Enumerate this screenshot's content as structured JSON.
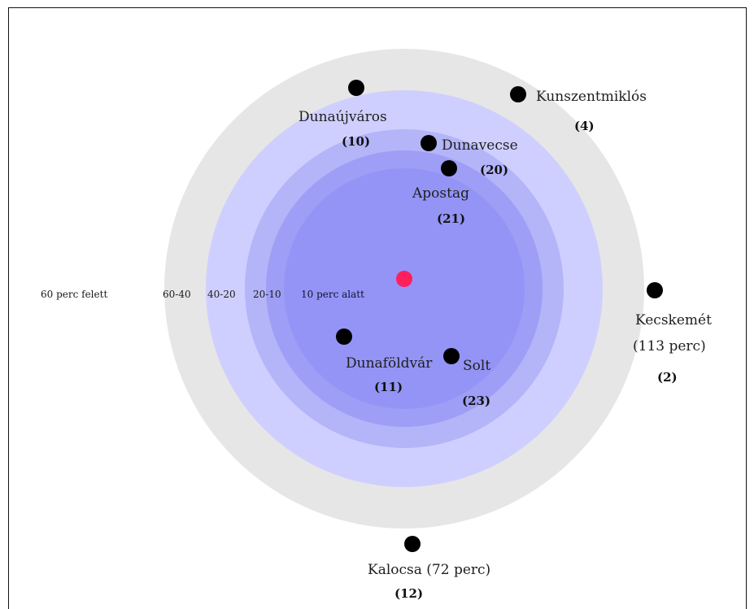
{
  "zones": {
    "z1": {
      "label": "60 perc felett",
      "color": "#e6e6e6"
    },
    "z2": {
      "label": "60-40",
      "color": "#cfcfff"
    },
    "z3": {
      "label": "40-20",
      "color": "#b4b4f8"
    },
    "z4": {
      "label": "20-10",
      "color": "#9e9ef6"
    },
    "z5": {
      "label": "10 perc alatt",
      "color": "#9494f6"
    }
  },
  "center": {
    "color": "#ff1f5a"
  },
  "towns": {
    "dunaujvaros": {
      "name": "Dunaújváros",
      "count": "(10)"
    },
    "kunszentmiklos": {
      "name": "Kunszentmiklós",
      "count": "(4)"
    },
    "dunavecse": {
      "name": "Dunavecse",
      "count": "(20)"
    },
    "apostag": {
      "name": "Apostag",
      "count": "(21)"
    },
    "kecskemet": {
      "name": "Kecskemét",
      "time": "(113 perc)",
      "count": "(2)"
    },
    "dunafoldvar": {
      "name": "Dunaföldvár",
      "count": "(11)"
    },
    "solt": {
      "name": "Solt",
      "count": "(23)"
    },
    "kalocsa": {
      "name": "Kalocsa (72 perc)",
      "count": "(12)"
    }
  }
}
